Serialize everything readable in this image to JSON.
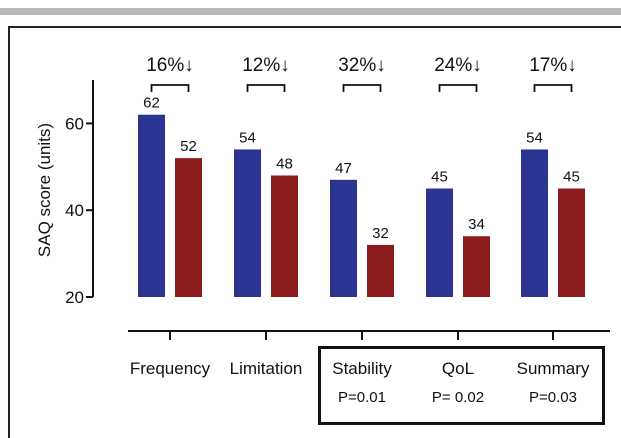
{
  "chart_data": {
    "type": "bar",
    "ylabel": "SAQ score (units)",
    "ylim": [
      20,
      70
    ],
    "yticks": [
      20,
      40,
      60
    ],
    "categories": [
      "Frequency",
      "Limitation",
      "Stability",
      "QoL",
      "Summary"
    ],
    "series": [
      {
        "values": [
          62,
          54,
          47,
          45,
          54
        ],
        "color": "#2b3591"
      },
      {
        "values": [
          52,
          48,
          32,
          34,
          45
        ],
        "color": "#8d1c1c"
      }
    ],
    "change_labels": [
      "16%↓",
      "12%↓",
      "32%↓",
      "24%↓",
      "17%↓"
    ],
    "p_values": [
      "",
      "",
      "P=0.01",
      "P= 0.02",
      "P=0.03"
    ],
    "grid": false,
    "legend": "none"
  }
}
